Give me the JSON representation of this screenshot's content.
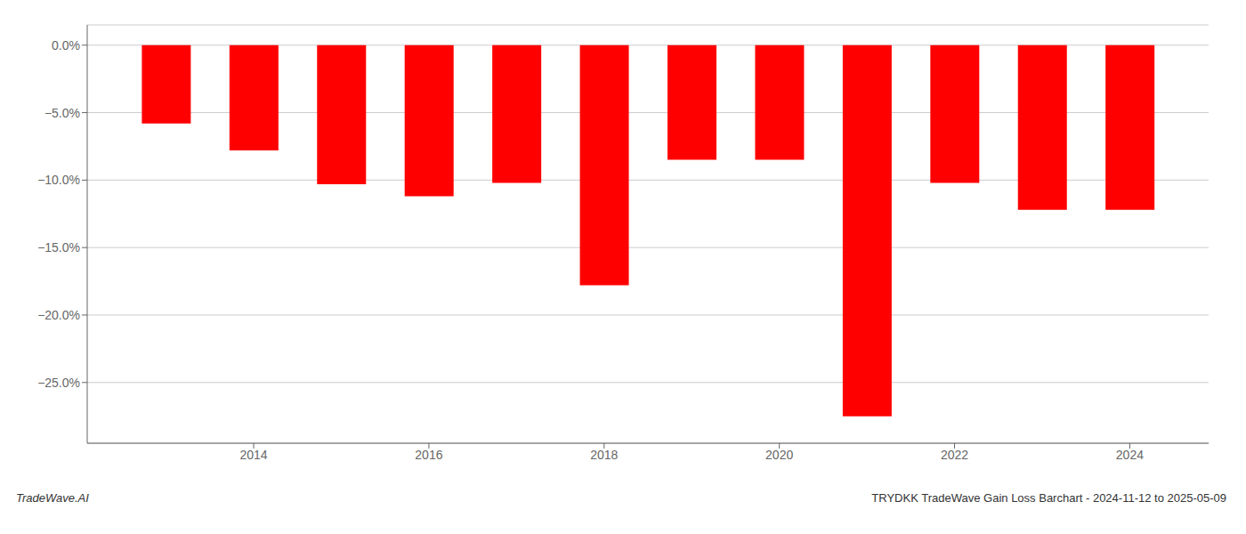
{
  "chart_data": {
    "type": "bar",
    "x": [
      2013,
      2014,
      2015,
      2016,
      2017,
      2018,
      2019,
      2020,
      2021,
      2022,
      2023,
      2024
    ],
    "values": [
      -5.8,
      -7.8,
      -10.3,
      -11.2,
      -10.2,
      -17.8,
      -8.5,
      -8.5,
      -27.5,
      -10.2,
      -12.2,
      -12.2
    ],
    "color": "#ff0000",
    "xlim": [
      2012.1,
      2024.9
    ],
    "xticks": [
      2014,
      2016,
      2018,
      2020,
      2022,
      2024
    ],
    "ylim": [
      -29.5,
      1.5
    ],
    "yticks": [
      {
        "value": 0.0,
        "label": "0.0%"
      },
      {
        "value": -5.0,
        "label": "−5.0%"
      },
      {
        "value": -10.0,
        "label": "−10.0%"
      },
      {
        "value": -15.0,
        "label": "−15.0%"
      },
      {
        "value": -20.0,
        "label": "−20.0%"
      },
      {
        "value": -25.0,
        "label": "−25.0%"
      }
    ],
    "grid": true,
    "annotations": [
      "TradeWave.AI",
      "TRYDKK TradeWave Gain Loss Barchart - 2024-11-12 to 2025-05-09"
    ]
  }
}
